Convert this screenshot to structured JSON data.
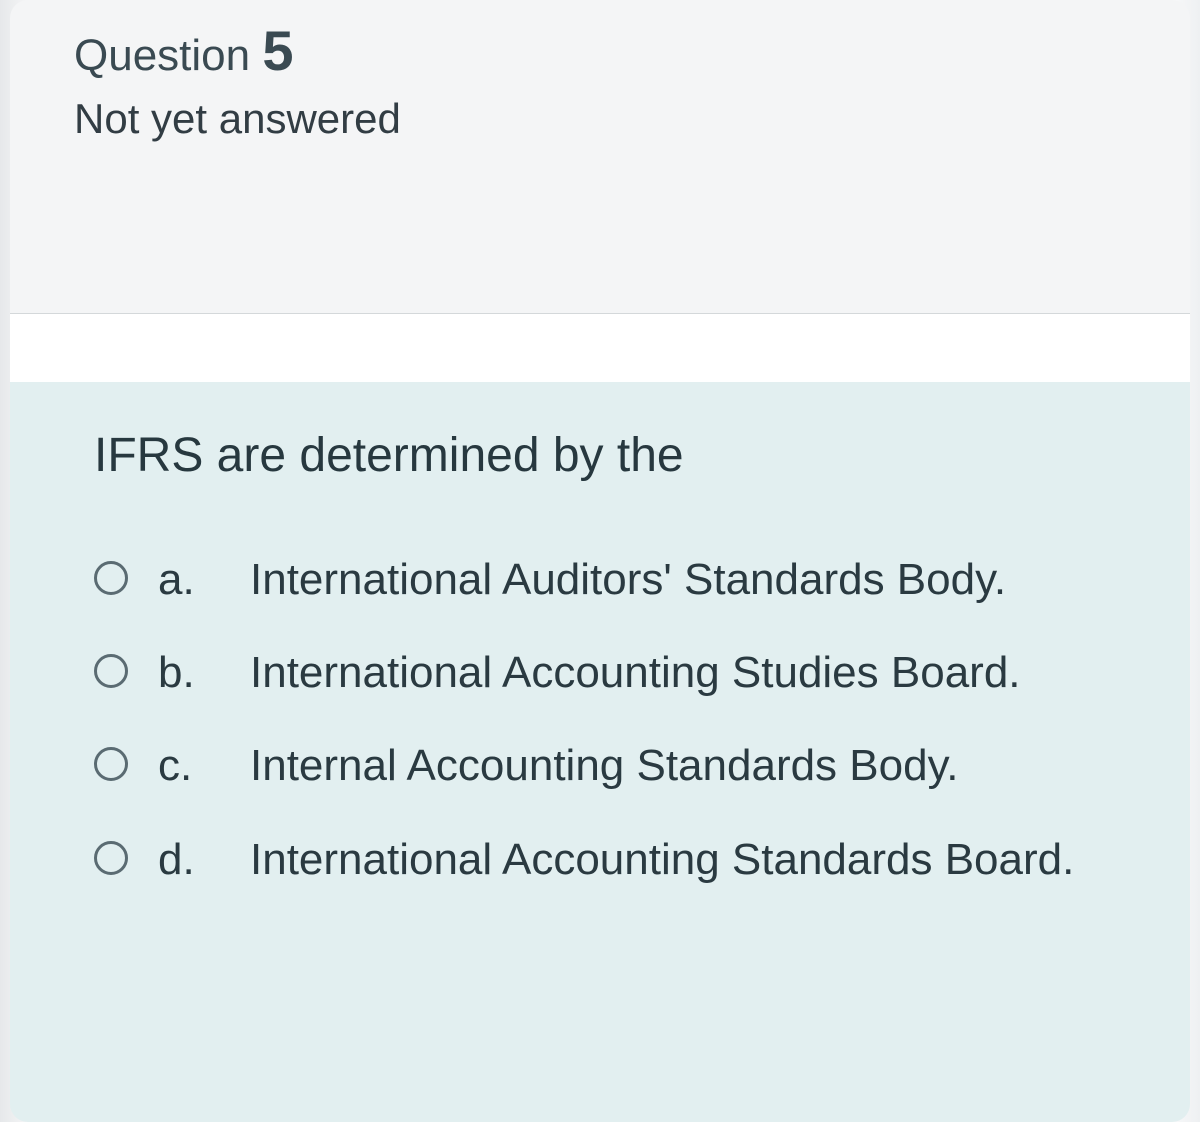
{
  "header": {
    "question_label": "Question",
    "question_number": "5",
    "status": "Not yet answered"
  },
  "body": {
    "prompt": "IFRS are determined by the",
    "options": [
      {
        "letter": "a.",
        "text": "International Auditors' Standards Body."
      },
      {
        "letter": "b.",
        "text": "International Accounting Studies Board."
      },
      {
        "letter": "c.",
        "text": "Internal Accounting Standards Body."
      },
      {
        "letter": "d.",
        "text": "International Accounting Standards Board."
      }
    ]
  },
  "colors": {
    "header_bg": "#f4f5f6",
    "body_bg": "#e2eff0",
    "text_primary": "#2f3b40",
    "radio_border": "#5a6b72"
  }
}
